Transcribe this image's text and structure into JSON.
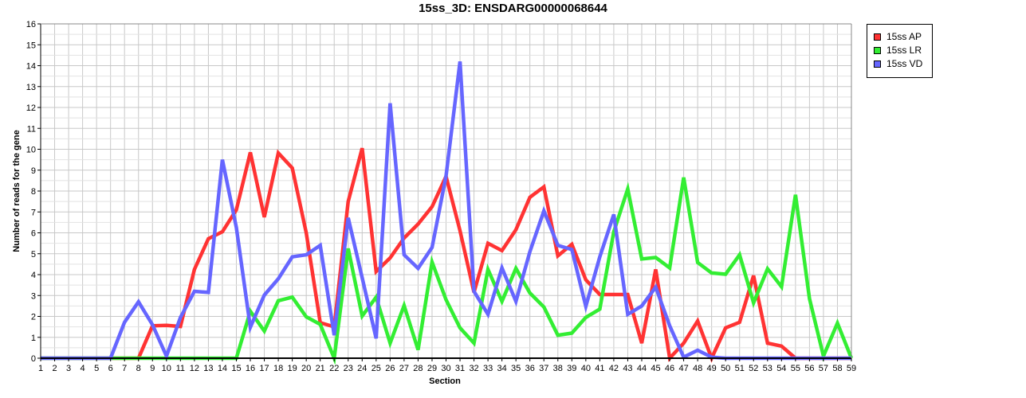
{
  "chart_data": {
    "type": "line",
    "title": "15ss_3D: ENSDARG00000068644",
    "xlabel": "Section",
    "ylabel": "Number of reads for the gene",
    "x": [
      1,
      2,
      3,
      4,
      5,
      6,
      7,
      8,
      9,
      10,
      11,
      12,
      13,
      14,
      15,
      16,
      17,
      18,
      19,
      20,
      21,
      22,
      23,
      24,
      25,
      26,
      27,
      28,
      29,
      30,
      31,
      32,
      33,
      34,
      35,
      36,
      37,
      38,
      39,
      40,
      41,
      42,
      43,
      44,
      45,
      46,
      47,
      48,
      49,
      50,
      51,
      52,
      53,
      54,
      55,
      56,
      57,
      58,
      59
    ],
    "xlim": [
      1,
      59
    ],
    "ylim": [
      0,
      16
    ],
    "yticks": [
      0,
      1,
      2,
      3,
      4,
      5,
      6,
      7,
      8,
      9,
      10,
      11,
      12,
      13,
      14,
      15,
      16
    ],
    "grid": true,
    "legend_position": "top-right",
    "series": [
      {
        "name": "15ss AP",
        "color": "#ff3333",
        "values": [
          0,
          0,
          0,
          0,
          0,
          0,
          0,
          0,
          1.55,
          1.57,
          1.52,
          4.25,
          5.72,
          6.05,
          7.1,
          9.85,
          6.75,
          9.82,
          9.1,
          6.0,
          1.7,
          1.5,
          7.5,
          10.05,
          4.15,
          4.8,
          5.75,
          6.42,
          7.25,
          8.7,
          6.1,
          3.15,
          5.5,
          5.15,
          6.15,
          7.7,
          8.2,
          4.9,
          5.45,
          3.75,
          3.05,
          3.05,
          3.05,
          0.72,
          4.25,
          0,
          0.72,
          1.78,
          0,
          1.45,
          1.72,
          3.95,
          0.72,
          0.58,
          0,
          0,
          0,
          0,
          0
        ]
      },
      {
        "name": "15ss LR",
        "color": "#33ee33",
        "values": [
          0,
          0,
          0,
          0,
          0,
          0,
          0,
          0,
          0,
          0,
          0,
          0,
          0,
          0,
          0,
          2.25,
          1.3,
          2.75,
          2.92,
          1.98,
          1.62,
          0,
          5.25,
          2.02,
          2.92,
          0.72,
          2.52,
          0.4,
          4.6,
          2.8,
          1.45,
          0.72,
          4.25,
          2.72,
          4.3,
          3.12,
          2.45,
          1.1,
          1.2,
          1.95,
          2.35,
          6.05,
          8.1,
          4.75,
          4.82,
          4.32,
          8.65,
          4.58,
          4.08,
          4.02,
          4.95,
          2.65,
          4.28,
          3.42,
          7.82,
          2.85,
          0.1,
          1.68,
          0
        ]
      },
      {
        "name": "15ss VD",
        "color": "#6666ff",
        "values": [
          0,
          0,
          0,
          0,
          0,
          0,
          1.72,
          2.7,
          1.6,
          0.1,
          1.95,
          3.2,
          3.15,
          9.5,
          6.25,
          1.48,
          3.02,
          3.8,
          4.85,
          4.95,
          5.4,
          1.1,
          6.72,
          3.85,
          0.95,
          12.2,
          4.95,
          4.3,
          5.3,
          8.72,
          14.2,
          3.2,
          2.1,
          4.32,
          2.72,
          5.1,
          7.05,
          5.4,
          5.2,
          2.48,
          4.85,
          6.88,
          2.1,
          2.5,
          3.4,
          1.55,
          0.05,
          0.38,
          0.05,
          0,
          0,
          0,
          0,
          0,
          0,
          0,
          0,
          0,
          0
        ]
      }
    ]
  }
}
